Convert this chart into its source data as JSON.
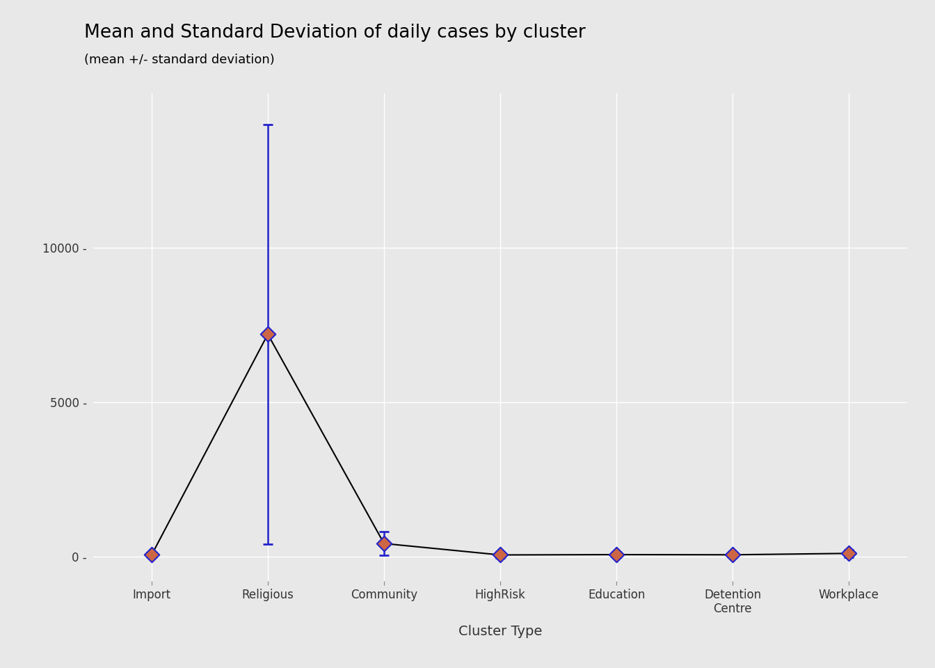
{
  "title": "Mean and Standard Deviation of daily cases by cluster",
  "subtitle": "(mean +/- standard deviation)",
  "xlabel": "Cluster Type",
  "ylabel": "",
  "categories": [
    "Import",
    "Religious",
    "Community",
    "HighRisk",
    "Education",
    "Detention\nCentre",
    "Workplace"
  ],
  "means": [
    50,
    7200,
    420,
    50,
    60,
    55,
    100
  ],
  "sds": [
    80,
    6800,
    380,
    110,
    90,
    85,
    130
  ],
  "background_color": "#e8e8e8",
  "plot_bg_color": "#e8e8e8",
  "line_color": "black",
  "errorbar_color": "#2222cc",
  "point_fill_color": "#cc6644",
  "point_edge_color": "#2222cc",
  "title_fontsize": 19,
  "subtitle_fontsize": 13,
  "axis_label_fontsize": 14,
  "tick_fontsize": 12,
  "ylim": [
    -800,
    15000
  ],
  "yticks": [
    0,
    5000,
    10000
  ],
  "ytick_labels": [
    "0",
    "5000",
    "10000"
  ],
  "grid_color": "white",
  "grid_linewidth": 1.0
}
